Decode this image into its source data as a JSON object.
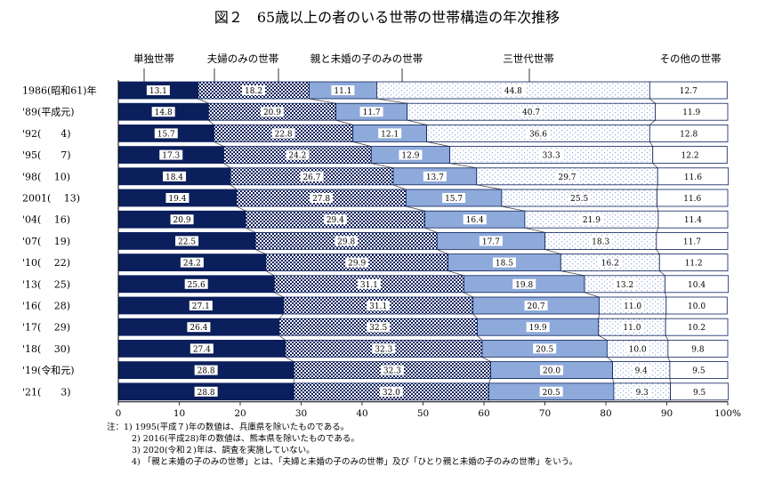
{
  "chart_data": {
    "type": "bar",
    "orientation": "horizontal",
    "stacked": true,
    "title": "図２　65歳以上の者のいる世帯の世帯構造の年次推移",
    "categories": [
      "1986(昭和61)年",
      "'89(平成元)",
      "'92(　　4)",
      "'95(　　7)",
      "'98(　 10)",
      "2001(　 13)",
      "'04(　 16)",
      "'07(　 19)",
      "'10(　 22)",
      "'13(　 25)",
      "'16(　 28)",
      "'17(　 29)",
      "'18(　 30)",
      "'19(令和元)",
      "'21(　　3)"
    ],
    "series": [
      {
        "name": "単独世帯",
        "color": "#0b1f5c",
        "pattern": "solid",
        "values": [
          13.1,
          14.8,
          15.7,
          17.3,
          18.4,
          19.4,
          20.9,
          22.5,
          24.2,
          25.6,
          27.1,
          26.4,
          27.4,
          28.8,
          28.8
        ]
      },
      {
        "name": "夫婦のみの世帯",
        "color": "#0b1f5c",
        "pattern": "checkerboard",
        "values": [
          18.2,
          20.9,
          22.8,
          24.2,
          26.7,
          27.8,
          29.4,
          29.8,
          29.9,
          31.1,
          31.1,
          32.5,
          32.3,
          32.3,
          32.0
        ]
      },
      {
        "name": "親と未婚の子のみの世帯",
        "color": "#8eaadb",
        "pattern": "solid",
        "values": [
          11.1,
          11.7,
          12.1,
          12.9,
          13.7,
          15.7,
          16.4,
          17.7,
          18.5,
          19.8,
          20.7,
          19.9,
          20.5,
          20.0,
          20.5
        ]
      },
      {
        "name": "三世代世帯",
        "color": "#8eaadb",
        "pattern": "dots",
        "values": [
          44.8,
          40.7,
          36.6,
          33.3,
          29.7,
          25.5,
          21.9,
          18.3,
          16.2,
          13.2,
          11.0,
          11.0,
          10.0,
          9.4,
          9.3
        ]
      },
      {
        "name": "その他の世帯",
        "color": "#ffffff",
        "pattern": "solid",
        "values": [
          12.7,
          11.9,
          12.8,
          12.2,
          11.6,
          11.6,
          11.4,
          11.7,
          11.2,
          10.4,
          10.0,
          10.2,
          9.8,
          9.5,
          9.5
        ]
      }
    ],
    "xlim": [
      0,
      100
    ],
    "xticks": [
      "0",
      "10",
      "20",
      "30",
      "40",
      "50",
      "60",
      "70",
      "80",
      "90",
      "100%"
    ],
    "legend_placement": "top",
    "grid": false
  },
  "notes": [
    "注：1)  1995(平成７)年の数値は、兵庫県を除いたものである。",
    "2)  2016(平成28)年の数値は、熊本県を除いたものである。",
    "3)  2020(令和２)年は、調査を実施していない。",
    "4)  「親と未婚の子のみの世帯」とは、「夫婦と未婚の子のみの世帯」及び「ひとり親と未婚の子のみの世帯」をいう。"
  ]
}
